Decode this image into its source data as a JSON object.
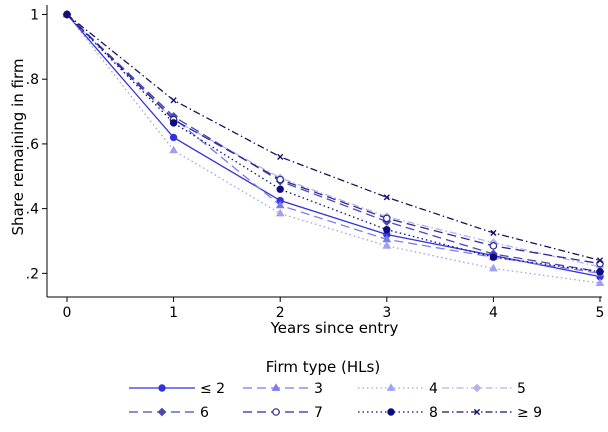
{
  "chart_data": {
    "type": "line",
    "title": "",
    "xlabel": "Years since entry",
    "ylabel": "Share remaining in firm",
    "x": [
      0,
      1,
      2,
      3,
      4,
      5
    ],
    "xlim": [
      0,
      5
    ],
    "ylim": [
      0.13,
      1.02
    ],
    "x_ticks": [
      {
        "value": 0,
        "label": "0"
      },
      {
        "value": 1,
        "label": "1"
      },
      {
        "value": 2,
        "label": "2"
      },
      {
        "value": 3,
        "label": "3"
      },
      {
        "value": 4,
        "label": "4"
      },
      {
        "value": 5,
        "label": "5"
      }
    ],
    "y_ticks": [
      {
        "value": 0.2,
        "label": ".2"
      },
      {
        "value": 0.4,
        "label": ".4"
      },
      {
        "value": 0.6,
        "label": ".6"
      },
      {
        "value": 0.8,
        "label": ".8"
      },
      {
        "value": 1.0,
        "label": "1"
      }
    ],
    "grid": false,
    "legend": {
      "title": "Firm type (HLs)",
      "position": "bottom",
      "columns": 4
    },
    "series": [
      {
        "name": "≤ 2",
        "color": "#3333dd",
        "dash": "solid",
        "marker": "circle",
        "values": [
          1.0,
          0.62,
          0.425,
          0.32,
          0.255,
          0.19
        ]
      },
      {
        "name": "3",
        "color": "#7b7bee",
        "dash": "longdash",
        "marker": "triangle",
        "values": [
          1.0,
          0.68,
          0.41,
          0.305,
          0.25,
          0.2
        ]
      },
      {
        "name": "4",
        "color": "#a0a0f2",
        "dash": "dot",
        "marker": "triangle",
        "values": [
          1.0,
          0.58,
          0.385,
          0.285,
          0.215,
          0.17
        ]
      },
      {
        "name": "5",
        "color": "#b4b4ec",
        "dash": "dashdot",
        "marker": "diamond",
        "values": [
          1.0,
          0.675,
          0.495,
          0.375,
          0.295,
          0.22
        ]
      },
      {
        "name": "6",
        "color": "#4a4ab0",
        "dash": "longdash",
        "marker": "diamond",
        "values": [
          1.0,
          0.685,
          0.485,
          0.36,
          0.26,
          0.205
        ]
      },
      {
        "name": "7",
        "color": "#2a2a9a",
        "dash": "longdash",
        "marker": "hollow-circle",
        "values": [
          1.0,
          0.675,
          0.49,
          0.37,
          0.285,
          0.23
        ]
      },
      {
        "name": "8",
        "color": "#0c0c80",
        "dash": "dot",
        "marker": "circle",
        "values": [
          1.0,
          0.665,
          0.46,
          0.335,
          0.25,
          0.205
        ]
      },
      {
        "name": "≥ 9",
        "color": "#141464",
        "dash": "dashdot",
        "marker": "x",
        "values": [
          1.0,
          0.735,
          0.56,
          0.435,
          0.325,
          0.24
        ]
      }
    ]
  }
}
